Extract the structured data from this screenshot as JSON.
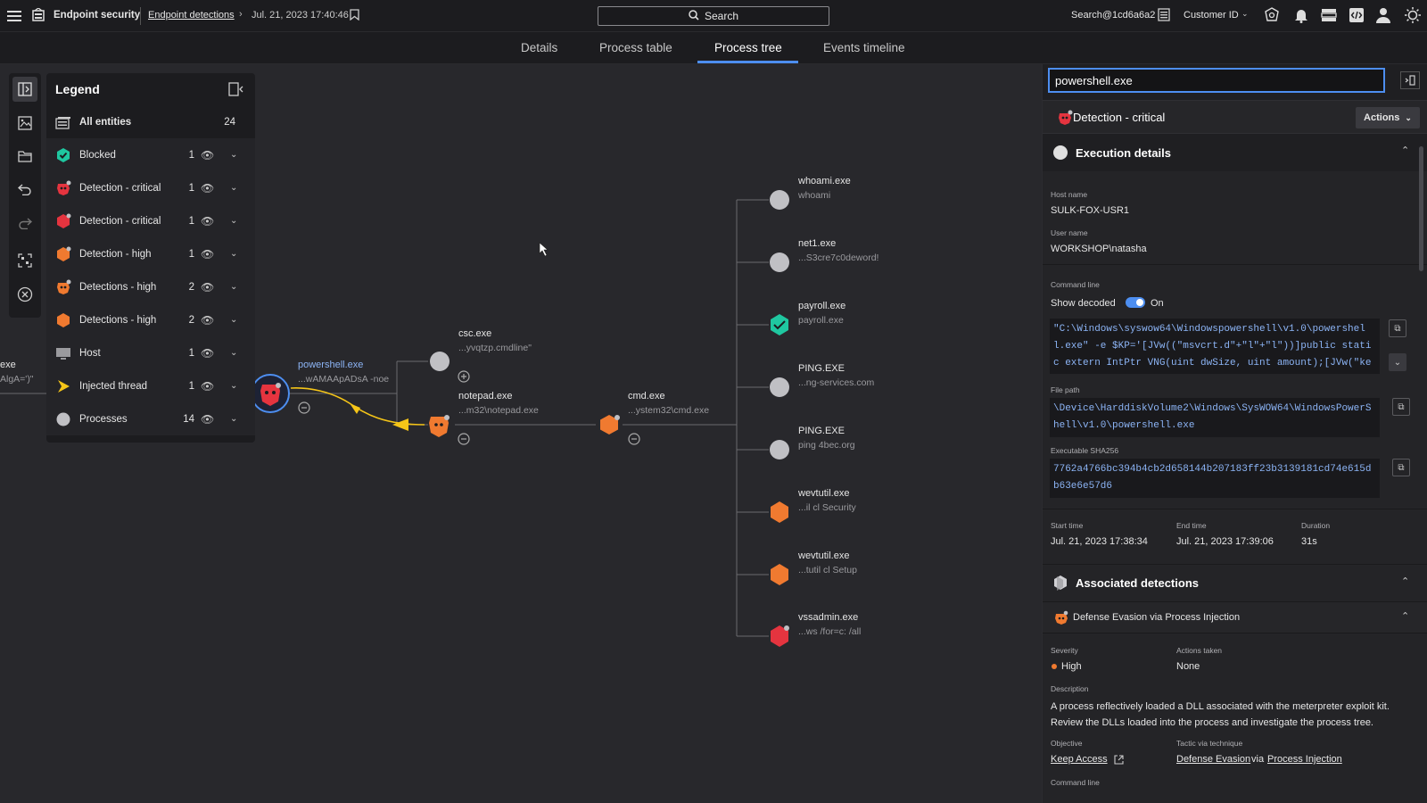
{
  "header": {
    "app_title": "Endpoint security",
    "breadcrumb_link": "Endpoint detections",
    "breadcrumb_date": "Jul. 21, 2023 17:40:46",
    "search_label": "Search",
    "user": "Search@1cd6a6a2",
    "customer_id_label": "Customer ID"
  },
  "tabs": [
    {
      "label": "Details"
    },
    {
      "label": "Process table"
    },
    {
      "label": "Process tree",
      "active": true
    },
    {
      "label": "Events timeline"
    }
  ],
  "legend": {
    "title": "Legend",
    "items": [
      {
        "label": "All entities",
        "count": "24",
        "icon": "all-entities-icon"
      },
      {
        "label": "Blocked",
        "count": "1",
        "icon": "blocked-shield-icon"
      },
      {
        "label": "Detection - critical",
        "count": "1",
        "icon": "detection-critical-process-icon"
      },
      {
        "label": "Detection - critical",
        "count": "1",
        "icon": "detection-critical-hexagon-icon"
      },
      {
        "label": "Detection - high",
        "count": "1",
        "icon": "detection-high-hexagon-icon"
      },
      {
        "label": "Detections - high",
        "count": "2",
        "icon": "detections-high-process-icon"
      },
      {
        "label": "Detections - high",
        "count": "2",
        "icon": "detections-high-hexagon-icon"
      },
      {
        "label": "Host",
        "count": "1",
        "icon": "host-icon"
      },
      {
        "label": "Injected thread",
        "count": "1",
        "icon": "injected-thread-icon"
      },
      {
        "label": "Processes",
        "count": "14",
        "icon": "process-circle-icon"
      }
    ]
  },
  "tree": {
    "left_cut_label": "exe",
    "left_cut_sub": "AlgA=')\"",
    "powershell": {
      "name": "powershell.exe",
      "sub": "...wAMAApADsA -noe"
    },
    "csc": {
      "name": "csc.exe",
      "sub": "...yvqtzp.cmdline\""
    },
    "notepad": {
      "name": "notepad.exe",
      "sub": "...m32\\notepad.exe"
    },
    "cmd": {
      "name": "cmd.exe",
      "sub": "...ystem32\\cmd.exe"
    },
    "children": [
      {
        "name": "whoami.exe",
        "sub": "whoami"
      },
      {
        "name": "net1.exe",
        "sub": "...S3cre7c0deword!"
      },
      {
        "name": "payroll.exe",
        "sub": "payroll.exe"
      },
      {
        "name": "PING.EXE",
        "sub": "...ng-services.com"
      },
      {
        "name": "PING.EXE",
        "sub": "ping 4bec.org"
      },
      {
        "name": "wevtutil.exe",
        "sub": "...il cl Security"
      },
      {
        "name": "wevtutil.exe",
        "sub": "...tutil cl Setup"
      },
      {
        "name": "vssadmin.exe",
        "sub": "...ws /for=c: /all"
      }
    ]
  },
  "panel": {
    "search_value": "powershell.exe",
    "detection_title": "Detection - critical",
    "actions_label": "Actions",
    "exec_title": "Execution details",
    "host_name_label": "Host name",
    "host_name": "SULK-FOX-USR1",
    "user_name_label": "User name",
    "user_name": "WORKSHOP\\natasha",
    "command_line_label": "Command line",
    "show_decoded_label": "Show decoded",
    "toggle_state": "On",
    "command_line": "\"C:\\Windows\\syswow64\\Windowspowershell\\v1.0\\powershell.exe\" -e $KP='[JVw((\"msvcrt.d\"+\"l\"+\"l\"))]public static extern IntPtr VNG(uint dwSize, uint amount);[JVw(\"kern…",
    "file_path_label": "File path",
    "file_path": "\\Device\\HarddiskVolume2\\Windows\\SysWOW64\\WindowsPowerShell\\v1.0\\powershell.exe",
    "sha_label": "Executable SHA256",
    "sha": "7762a4766bc394b4cb2d658144b207183ff23b3139181cd74e615db63e6e57d6",
    "start_label": "Start time",
    "start": "Jul. 21, 2023 17:38:34",
    "end_label": "End time",
    "end": "Jul. 21, 2023 17:39:06",
    "duration_label": "Duration",
    "duration": "31s",
    "assoc_title": "Associated detections",
    "assoc_item": "Defense Evasion via Process Injection",
    "severity_label": "Severity",
    "severity": "High",
    "actions_taken_label": "Actions taken",
    "actions_taken": "None",
    "description_label": "Description",
    "description": "A process reflectively loaded a DLL associated with the meterpreter exploit kit. Review the DLLs loaded into the process and investigate the process tree.",
    "objective_label": "Objective",
    "objective": "Keep Access",
    "tactic_label": "Tactic via technique",
    "tactic": "Defense Evasion",
    "via": "via",
    "technique": "Process Injection",
    "bottom_label": "Command line"
  },
  "colors": {
    "accent": "#4d8ef0",
    "critical": "#e5343f",
    "high": "#f07a30",
    "blocked": "#1fc7a0",
    "process": "#c0c0c4",
    "injected": "#f5c518"
  }
}
